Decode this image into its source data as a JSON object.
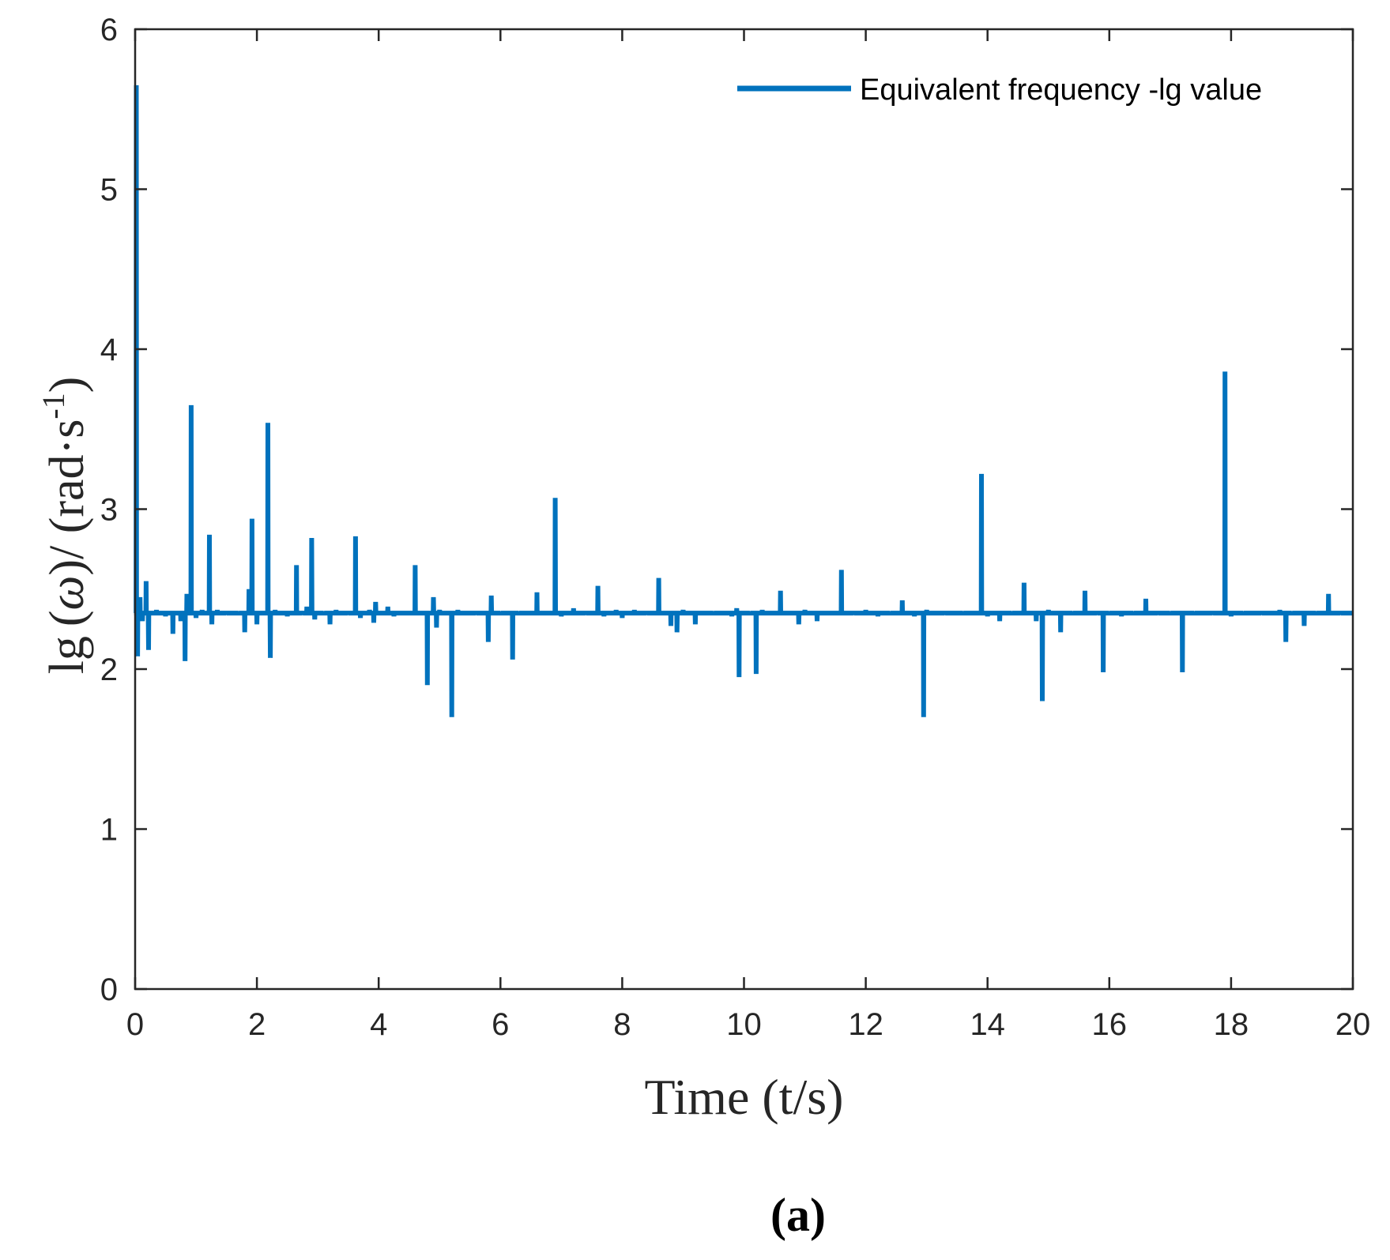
{
  "chart_data": {
    "type": "line",
    "title": "",
    "xlabel": "Time (t/s)",
    "ylabel_parts": {
      "lg": "lg",
      "open": "(",
      "omega": "ω",
      "close_slash": ")/ (rad·s",
      "exponent": "-1",
      "end": ")"
    },
    "xlim": [
      0,
      20
    ],
    "ylim": [
      0,
      6
    ],
    "xticks": [
      0,
      2,
      4,
      6,
      8,
      10,
      12,
      14,
      16,
      18,
      20
    ],
    "yticks": [
      0,
      1,
      2,
      3,
      4,
      5,
      6
    ],
    "legend_position": "top-right",
    "caption": "(a)",
    "series": [
      {
        "name": "Equivalent frequency -lg value",
        "color": "#0072BD",
        "baseline": 2.35,
        "start": {
          "x": 0.0,
          "y": 2.35
        },
        "spikes": [
          [
            0.02,
            5.65
          ],
          [
            0.04,
            2.08
          ],
          [
            0.08,
            2.45
          ],
          [
            0.12,
            2.3
          ],
          [
            0.18,
            2.55
          ],
          [
            0.22,
            2.12
          ],
          [
            0.35,
            2.37
          ],
          [
            0.5,
            2.33
          ],
          [
            0.62,
            2.22
          ],
          [
            0.75,
            2.3
          ],
          [
            0.82,
            2.05
          ],
          [
            0.85,
            2.47
          ],
          [
            0.92,
            3.65
          ],
          [
            1.0,
            2.32
          ],
          [
            1.1,
            2.37
          ],
          [
            1.22,
            2.84
          ],
          [
            1.26,
            2.28
          ],
          [
            1.35,
            2.37
          ],
          [
            1.5,
            2.34
          ],
          [
            1.7,
            2.36
          ],
          [
            1.8,
            2.23
          ],
          [
            1.87,
            2.5
          ],
          [
            1.92,
            2.94
          ],
          [
            2.0,
            2.28
          ],
          [
            2.18,
            3.54
          ],
          [
            2.22,
            2.07
          ],
          [
            2.3,
            2.37
          ],
          [
            2.5,
            2.33
          ],
          [
            2.65,
            2.65
          ],
          [
            2.75,
            2.34
          ],
          [
            2.82,
            2.39
          ],
          [
            2.9,
            2.82
          ],
          [
            2.95,
            2.31
          ],
          [
            3.1,
            2.36
          ],
          [
            3.2,
            2.28
          ],
          [
            3.3,
            2.37
          ],
          [
            3.5,
            2.34
          ],
          [
            3.62,
            2.83
          ],
          [
            3.7,
            2.32
          ],
          [
            3.85,
            2.37
          ],
          [
            3.92,
            2.29
          ],
          [
            3.95,
            2.42
          ],
          [
            4.15,
            2.39
          ],
          [
            4.25,
            2.33
          ],
          [
            4.6,
            2.65
          ],
          [
            4.8,
            1.9
          ],
          [
            4.9,
            2.45
          ],
          [
            4.95,
            2.26
          ],
          [
            5.0,
            2.37
          ],
          [
            5.2,
            1.7
          ],
          [
            5.3,
            2.37
          ],
          [
            5.6,
            2.34
          ],
          [
            5.8,
            2.17
          ],
          [
            5.85,
            2.46
          ],
          [
            6.0,
            2.36
          ],
          [
            6.2,
            2.06
          ],
          [
            6.3,
            2.36
          ],
          [
            6.6,
            2.48
          ],
          [
            6.9,
            3.07
          ],
          [
            7.0,
            2.33
          ],
          [
            7.2,
            2.38
          ],
          [
            7.4,
            2.34
          ],
          [
            7.6,
            2.52
          ],
          [
            7.7,
            2.33
          ],
          [
            7.9,
            2.37
          ],
          [
            8.0,
            2.32
          ],
          [
            8.2,
            2.37
          ],
          [
            8.4,
            2.34
          ],
          [
            8.6,
            2.57
          ],
          [
            8.8,
            2.27
          ],
          [
            8.9,
            2.23
          ],
          [
            9.0,
            2.37
          ],
          [
            9.2,
            2.28
          ],
          [
            9.5,
            2.36
          ],
          [
            9.8,
            2.33
          ],
          [
            9.88,
            2.38
          ],
          [
            9.92,
            1.95
          ],
          [
            10.1,
            2.36
          ],
          [
            10.2,
            1.97
          ],
          [
            10.3,
            2.37
          ],
          [
            10.6,
            2.49
          ],
          [
            10.9,
            2.28
          ],
          [
            11.0,
            2.37
          ],
          [
            11.2,
            2.3
          ],
          [
            11.4,
            2.35
          ],
          [
            11.6,
            2.62
          ],
          [
            11.8,
            2.34
          ],
          [
            12.0,
            2.37
          ],
          [
            12.2,
            2.33
          ],
          [
            12.4,
            2.36
          ],
          [
            12.6,
            2.43
          ],
          [
            12.8,
            2.33
          ],
          [
            12.95,
            1.7
          ],
          [
            13.0,
            2.37
          ],
          [
            13.3,
            2.34
          ],
          [
            13.6,
            2.36
          ],
          [
            13.9,
            3.22
          ],
          [
            14.0,
            2.33
          ],
          [
            14.2,
            2.3
          ],
          [
            14.4,
            2.36
          ],
          [
            14.6,
            2.54
          ],
          [
            14.8,
            2.3
          ],
          [
            14.9,
            1.8
          ],
          [
            15.0,
            2.37
          ],
          [
            15.2,
            2.23
          ],
          [
            15.4,
            2.36
          ],
          [
            15.6,
            2.49
          ],
          [
            15.8,
            2.34
          ],
          [
            15.9,
            1.98
          ],
          [
            16.0,
            2.36
          ],
          [
            16.2,
            2.33
          ],
          [
            16.4,
            2.36
          ],
          [
            16.6,
            2.44
          ],
          [
            16.8,
            2.34
          ],
          [
            17.0,
            2.36
          ],
          [
            17.2,
            1.98
          ],
          [
            17.4,
            2.36
          ],
          [
            17.7,
            2.34
          ],
          [
            17.9,
            3.86
          ],
          [
            18.0,
            2.33
          ],
          [
            18.2,
            2.36
          ],
          [
            18.5,
            2.34
          ],
          [
            18.8,
            2.37
          ],
          [
            18.9,
            2.17
          ],
          [
            19.0,
            2.36
          ],
          [
            19.2,
            2.27
          ],
          [
            19.4,
            2.36
          ],
          [
            19.6,
            2.47
          ],
          [
            19.8,
            2.34
          ]
        ],
        "end": {
          "x": 20.0,
          "y": 2.35
        }
      }
    ]
  }
}
